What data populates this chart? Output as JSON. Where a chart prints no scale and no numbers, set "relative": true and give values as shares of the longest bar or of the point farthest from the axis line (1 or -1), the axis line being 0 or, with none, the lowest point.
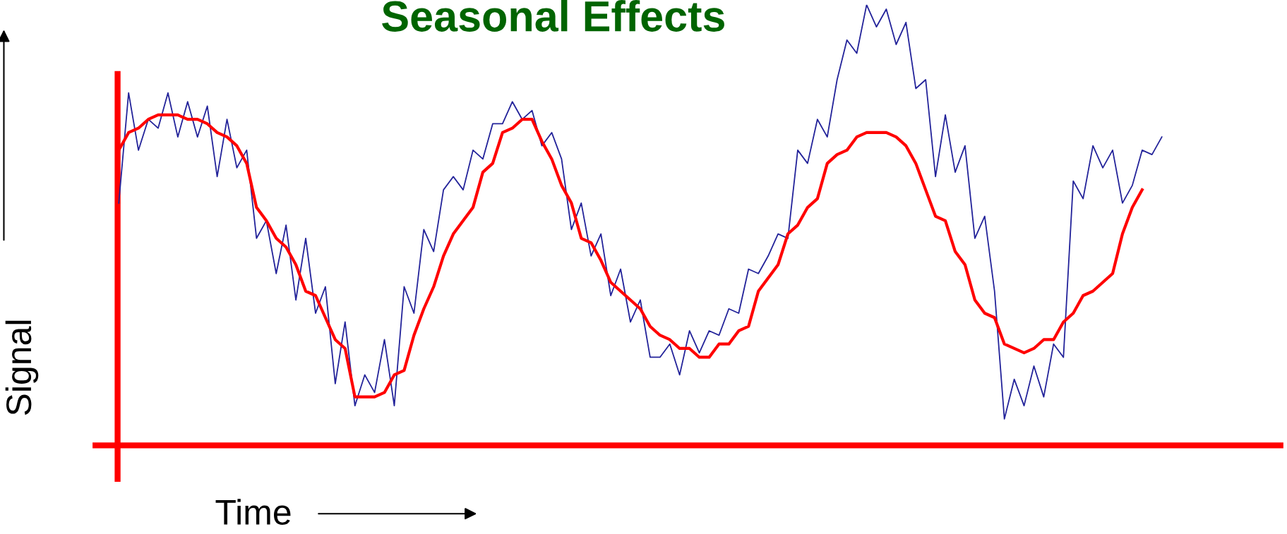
{
  "chart_data": {
    "type": "line",
    "title": "Seasonal Effects",
    "xlabel": "Time",
    "ylabel": "Signal",
    "relative": true,
    "marker": "none",
    "line_style": "solid",
    "categories": [
      null,
      null,
      null,
      null,
      null,
      null,
      null,
      null,
      null,
      null,
      null,
      null,
      null,
      null,
      null,
      null,
      null,
      null,
      null,
      null,
      null,
      null,
      null,
      null,
      null,
      null,
      null,
      null,
      null,
      null,
      null,
      null,
      null,
      null,
      null,
      null,
      null,
      null,
      null,
      null,
      null,
      null,
      null,
      null,
      null,
      null,
      null,
      null,
      null,
      null,
      null,
      null,
      null,
      null,
      null,
      null,
      null,
      null,
      null,
      null,
      null,
      null,
      null,
      null,
      null,
      null,
      null,
      null,
      null,
      null,
      null,
      null,
      null,
      null,
      null,
      null,
      null,
      null,
      null,
      null,
      null,
      null,
      null,
      null,
      null,
      null,
      null,
      null,
      null,
      null,
      null,
      null,
      null,
      null,
      null,
      null,
      null,
      null,
      null,
      null,
      null,
      null,
      null,
      null,
      null,
      null,
      null
    ],
    "series": [
      {
        "color": "#23239a",
        "values": [
          0.55,
          0.8,
          0.67,
          0.74,
          0.72,
          0.8,
          0.7,
          0.78,
          0.7,
          0.77,
          0.61,
          0.74,
          0.63,
          0.67,
          0.47,
          0.51,
          0.39,
          0.5,
          0.33,
          0.47,
          0.3,
          0.36,
          0.14,
          0.28,
          0.09,
          0.16,
          0.12,
          0.24,
          0.09,
          0.36,
          0.3,
          0.49,
          0.44,
          0.58,
          0.61,
          0.58,
          0.67,
          0.65,
          0.73,
          0.73,
          0.78,
          0.74,
          0.76,
          0.68,
          0.71,
          0.65,
          0.49,
          0.55,
          0.43,
          0.48,
          0.34,
          0.4,
          0.28,
          0.33,
          0.2,
          0.2,
          0.23,
          0.16,
          0.26,
          0.21,
          0.26,
          0.25,
          0.31,
          0.3,
          0.4,
          0.39,
          0.43,
          0.48,
          0.47,
          0.67,
          0.64,
          0.74,
          0.7,
          0.83,
          0.92,
          0.89,
          1.0,
          0.95,
          0.99,
          0.91,
          0.96,
          0.81,
          0.83,
          0.61,
          0.75,
          0.62,
          0.68,
          0.47,
          0.52,
          0.35,
          0.06,
          0.15,
          0.09,
          0.18,
          0.11,
          0.23,
          0.2,
          0.6,
          0.56,
          0.68,
          0.63,
          0.67,
          0.55,
          0.59,
          0.67,
          0.66,
          0.7
        ]
      },
      {
        "color": "#ff0000",
        "values": [
          0.67,
          0.71,
          0.72,
          0.74,
          0.75,
          0.75,
          0.75,
          0.74,
          0.74,
          0.73,
          0.71,
          0.7,
          0.68,
          0.64,
          0.54,
          0.51,
          0.47,
          0.45,
          0.41,
          0.35,
          0.34,
          0.29,
          0.24,
          0.22,
          0.11,
          0.11,
          0.11,
          0.12,
          0.16,
          0.17,
          0.25,
          0.31,
          0.36,
          0.43,
          0.48,
          0.51,
          0.54,
          0.62,
          0.64,
          0.71,
          0.72,
          0.74,
          0.74,
          0.69,
          0.65,
          0.59,
          0.55,
          0.47,
          0.46,
          0.42,
          0.37,
          0.35,
          0.33,
          0.31,
          0.27,
          0.25,
          0.24,
          0.22,
          0.22,
          0.2,
          0.2,
          0.23,
          0.23,
          0.26,
          0.27,
          0.35,
          0.38,
          0.41,
          0.48,
          0.5,
          0.54,
          0.56,
          0.64,
          0.66,
          0.67,
          0.7,
          0.71,
          0.71,
          0.71,
          0.7,
          0.68,
          0.64,
          0.58,
          0.52,
          0.51,
          0.44,
          0.41,
          0.33,
          0.3,
          0.29,
          0.23,
          0.22,
          0.21,
          0.22,
          0.24,
          0.24,
          0.28,
          0.3,
          0.34,
          0.35,
          0.37,
          0.39,
          0.48,
          0.54,
          0.58,
          null,
          null
        ]
      }
    ]
  }
}
